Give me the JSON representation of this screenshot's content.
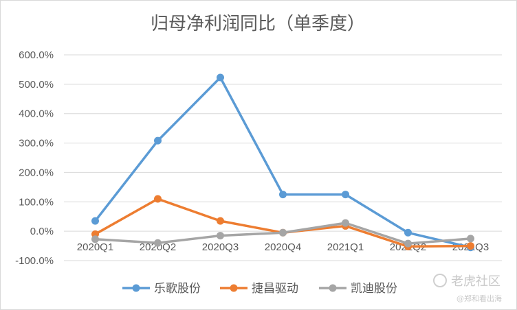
{
  "chart_data": {
    "type": "line",
    "title": "归母净利润同比（单季度）",
    "categories": [
      "2020Q1",
      "2020Q2",
      "2020Q3",
      "2020Q4",
      "2021Q1",
      "2021Q2",
      "2021Q3"
    ],
    "y_ticks": [
      "600.0%",
      "500.0%",
      "400.0%",
      "300.0%",
      "200.0%",
      "100.0%",
      "0.0%",
      "-100.0%"
    ],
    "ylim": [
      -100,
      600
    ],
    "y_unit": "%",
    "grid": true,
    "legend_position": "bottom",
    "series": [
      {
        "name": "乐歌股份",
        "color": "#5b9bd5",
        "values": [
          35,
          308,
          523,
          125,
          125,
          -5,
          -55
        ]
      },
      {
        "name": "捷昌驱动",
        "color": "#ed7d31",
        "values": [
          -10,
          110,
          35,
          -5,
          18,
          -52,
          -50
        ]
      },
      {
        "name": "凯迪股份",
        "color": "#a5a5a5",
        "values": [
          -27,
          -40,
          -15,
          -5,
          28,
          -42,
          -25
        ]
      }
    ]
  },
  "watermark": {
    "logo_text": "老虎社区",
    "user_text": "@郑和看出海"
  }
}
